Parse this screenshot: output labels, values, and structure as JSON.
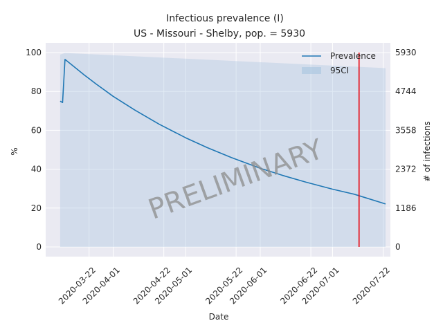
{
  "chart_data": {
    "type": "line",
    "title_line1": "Infectious prevalence (I)",
    "title_line2": "US - Missouri - Shelby, pop. = 5930",
    "xlabel": "Date",
    "ylabel_left": "%",
    "ylabel_right": "# of infections",
    "watermark": "PRELIMINARY",
    "xlim": [
      "2020-03-04",
      "2020-07-25"
    ],
    "ylim": [
      -5,
      105
    ],
    "x_ticks": [
      "2020-03-22",
      "2020-04-01",
      "2020-04-22",
      "2020-05-01",
      "2020-05-22",
      "2020-06-01",
      "2020-06-22",
      "2020-07-01",
      "2020-07-22"
    ],
    "y_ticks_left": [
      0,
      20,
      40,
      60,
      80,
      100
    ],
    "y_ticks_left_labels": [
      "0",
      "20",
      "40",
      "60",
      "80",
      "100"
    ],
    "y_ticks_right_labels": [
      "0",
      "1186",
      "2372",
      "3558",
      "4744",
      "5930"
    ],
    "vline_date": "2020-07-12",
    "vline_color": "#e8000b",
    "line_color": "#1f77b4",
    "band_color": "#a6c4e0",
    "legend": {
      "position": "upper-right",
      "entries": [
        "Prevalence",
        "95CI"
      ]
    },
    "series": [
      {
        "name": "Prevalence",
        "x": [
          "2020-03-10",
          "2020-03-11",
          "2020-03-12",
          "2020-03-15",
          "2020-03-20",
          "2020-03-25",
          "2020-04-01",
          "2020-04-10",
          "2020-04-20",
          "2020-05-01",
          "2020-05-10",
          "2020-05-20",
          "2020-06-01",
          "2020-06-10",
          "2020-06-20",
          "2020-07-01",
          "2020-07-10",
          "2020-07-23"
        ],
        "y": [
          75,
          74.3,
          96.5,
          93.5,
          88.5,
          83.8,
          77.5,
          70.4,
          63.2,
          56.2,
          51.1,
          46.0,
          40.5,
          36.9,
          33.3,
          29.7,
          27.1,
          22.1
        ]
      },
      {
        "name": "95CI",
        "x": [
          "2020-03-10",
          "2020-03-12",
          "2020-07-23"
        ],
        "upper": [
          99,
          99.8,
          92
        ],
        "lower": [
          0,
          0,
          0
        ]
      }
    ]
  }
}
